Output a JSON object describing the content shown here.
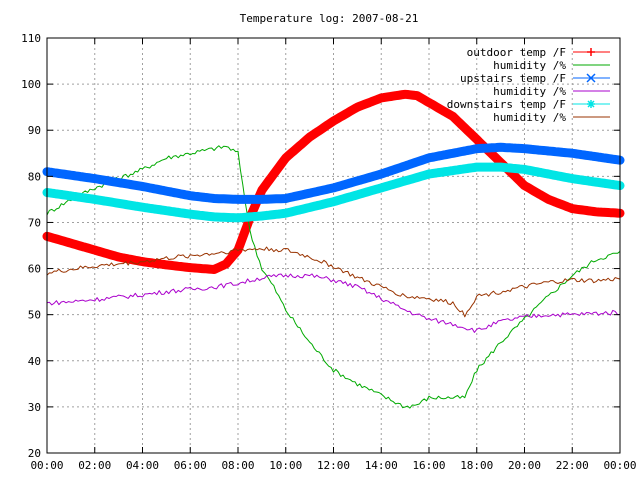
{
  "chart_data": {
    "type": "line",
    "title": "Temperature log: 2007-08-21",
    "xlabel": "",
    "ylabel": "",
    "xlim": [
      0,
      24
    ],
    "ylim": [
      20,
      110
    ],
    "grid": true,
    "legend_position": "top-right",
    "x_ticks": [
      "00:00",
      "02:00",
      "04:00",
      "06:00",
      "08:00",
      "10:00",
      "12:00",
      "14:00",
      "16:00",
      "18:00",
      "20:00",
      "22:00",
      "00:00"
    ],
    "y_ticks": [
      20,
      30,
      40,
      50,
      60,
      70,
      80,
      90,
      100,
      110
    ],
    "series": [
      {
        "name": "outdoor temp /F",
        "color": "#ff0000",
        "marker": "plus",
        "x": [
          0,
          1,
          2,
          3,
          4,
          5,
          6,
          7,
          7.5,
          8,
          8.5,
          9,
          10,
          11,
          12,
          13,
          14,
          15,
          15.5,
          16,
          17,
          18,
          19,
          20,
          21,
          22,
          23,
          24
        ],
        "y": [
          67,
          65.5,
          64,
          62.5,
          61.5,
          60.8,
          60.2,
          59.8,
          61,
          64,
          71,
          77,
          84,
          88.5,
          92,
          95,
          97,
          97.8,
          97.5,
          96,
          93,
          88,
          83,
          78,
          75,
          73,
          72.3,
          72
        ]
      },
      {
        "name": "humidity /%",
        "color": "#00aa00",
        "marker": "none",
        "x": [
          0,
          1,
          2,
          3,
          4,
          5,
          6,
          7,
          7.5,
          8,
          8.5,
          9,
          9.5,
          10,
          11,
          12,
          13,
          14,
          15,
          15.5,
          16,
          17,
          17.5,
          18,
          19,
          20,
          21,
          22,
          23,
          24
        ],
        "y": [
          72,
          75,
          77.5,
          79.5,
          81.5,
          84,
          85,
          86,
          86.5,
          85,
          68,
          60,
          56,
          51,
          44,
          38,
          35,
          32.5,
          30,
          30.5,
          32,
          32,
          32,
          38,
          44,
          49,
          54,
          58.5,
          62,
          63.5
        ]
      },
      {
        "name": "upstairs temp /F",
        "color": "#0066ff",
        "marker": "cross",
        "x": [
          0,
          2,
          4,
          6,
          7,
          8,
          9,
          10,
          12,
          14,
          16,
          18,
          19,
          20,
          22,
          24
        ],
        "y": [
          81,
          79.5,
          77.8,
          75.8,
          75.2,
          75,
          75,
          75.2,
          77.5,
          80.5,
          84,
          86,
          86.3,
          86,
          85,
          83.5
        ]
      },
      {
        "name": "humidity /%",
        "color": "#aa00cc",
        "marker": "none",
        "x": [
          0,
          1,
          2,
          3,
          4,
          5,
          6,
          7,
          8,
          9,
          10,
          11,
          12,
          13,
          14,
          15,
          16,
          17,
          18,
          19,
          20,
          21,
          22,
          23,
          24
        ],
        "y": [
          52.5,
          52.8,
          53.3,
          53.8,
          54.3,
          55,
          55.5,
          56,
          56.8,
          58,
          58.5,
          58.5,
          57.5,
          56,
          53.5,
          51,
          49,
          48,
          46.5,
          48.5,
          49.5,
          50,
          50,
          50.3,
          50.5
        ]
      },
      {
        "name": "downstairs temp /F",
        "color": "#00e5e5",
        "marker": "star",
        "x": [
          0,
          2,
          4,
          6,
          7,
          8,
          9,
          10,
          12,
          14,
          16,
          18,
          19,
          20,
          22,
          24
        ],
        "y": [
          76.5,
          75,
          73.3,
          71.8,
          71.2,
          71,
          71.4,
          72,
          74.5,
          77.5,
          80.5,
          82,
          82,
          81.5,
          79.5,
          78
        ]
      },
      {
        "name": "humidity /%",
        "color": "#993300",
        "marker": "none",
        "x": [
          0,
          1,
          2,
          3,
          4,
          5,
          6,
          7,
          8,
          9,
          10,
          11,
          12,
          13,
          14,
          15,
          16,
          17,
          17.5,
          18,
          19,
          20,
          21,
          22,
          23,
          24
        ],
        "y": [
          59,
          59.8,
          60.5,
          61,
          61.5,
          62.2,
          62.8,
          63.3,
          64,
          64.3,
          64,
          62.5,
          60.5,
          58,
          56,
          54,
          53.5,
          52.5,
          50,
          54,
          55,
          56,
          57,
          57.5,
          57.3,
          57.8
        ]
      }
    ]
  }
}
